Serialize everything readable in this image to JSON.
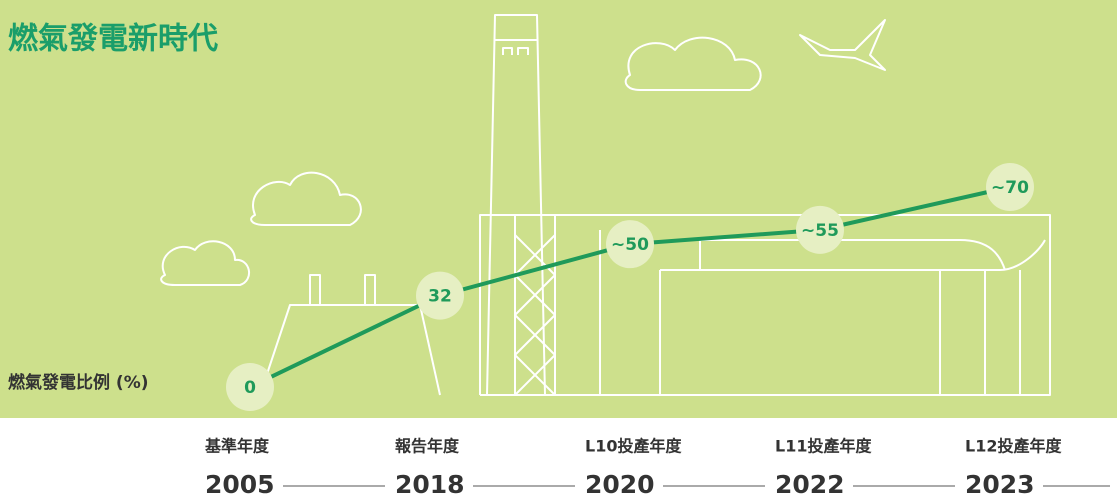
{
  "chart_data": {
    "type": "line",
    "title": "燃氣發電新時代",
    "y_label": "燃氣發電比例 (%)",
    "categories": [
      "2005",
      "2018",
      "2020",
      "2022",
      "2023"
    ],
    "category_labels": [
      "基準年度",
      "報告年度",
      "L10投產年度",
      "L11投產年度",
      "L12投產年度"
    ],
    "values": [
      0,
      32,
      50,
      55,
      70
    ],
    "value_labels": [
      "0",
      "32",
      "~50",
      "~55",
      "~70"
    ],
    "color": "#1f9a5a"
  }
}
